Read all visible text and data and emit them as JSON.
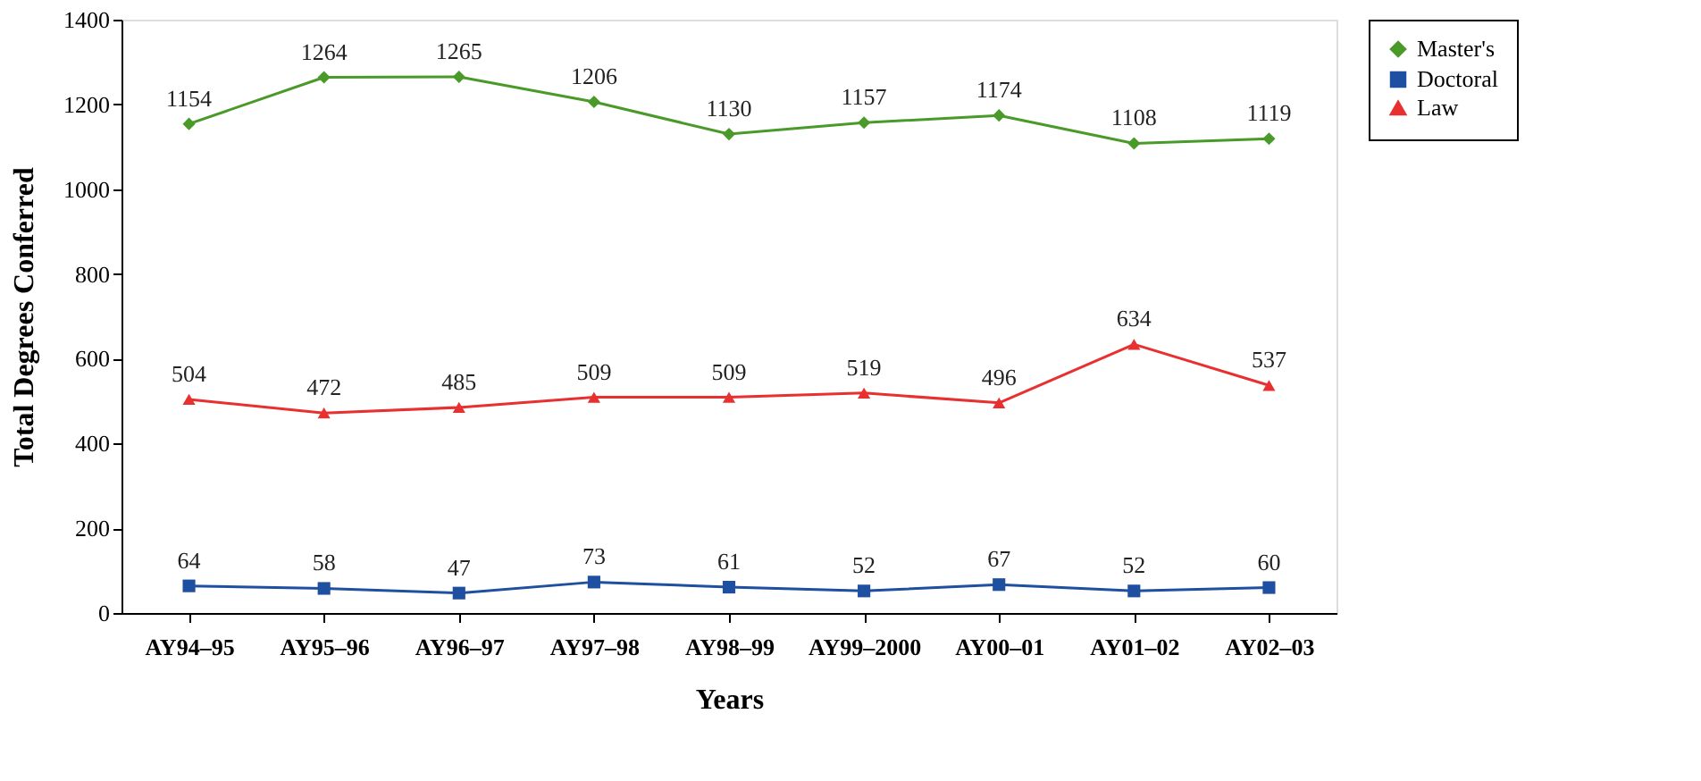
{
  "chart_data": {
    "type": "line",
    "xlabel": "Years",
    "ylabel": "Total Degrees Conferred",
    "categories": [
      "AY94–95",
      "AY95–96",
      "AY96–97",
      "AY97–98",
      "AY98–99",
      "AY99–2000",
      "AY00–01",
      "AY01–02",
      "AY02–03"
    ],
    "series": [
      {
        "name": "Master's",
        "color": "#4a9a2a",
        "marker": "diamond",
        "values": [
          1154,
          1264,
          1265,
          1206,
          1130,
          1157,
          1174,
          1108,
          1119
        ]
      },
      {
        "name": "Doctoral",
        "color": "#1f4fa0",
        "marker": "square",
        "values": [
          64,
          58,
          47,
          73,
          61,
          52,
          67,
          52,
          60
        ]
      },
      {
        "name": "Law",
        "color": "#e83030",
        "marker": "triangle",
        "values": [
          504,
          472,
          485,
          509,
          509,
          519,
          496,
          634,
          537
        ]
      }
    ],
    "ylim": [
      0,
      1400
    ],
    "yticks": [
      0,
      200,
      400,
      600,
      800,
      1000,
      1200,
      1400
    ],
    "data_labels": true,
    "grid": false,
    "legend": "right",
    "line_style": "solid"
  }
}
